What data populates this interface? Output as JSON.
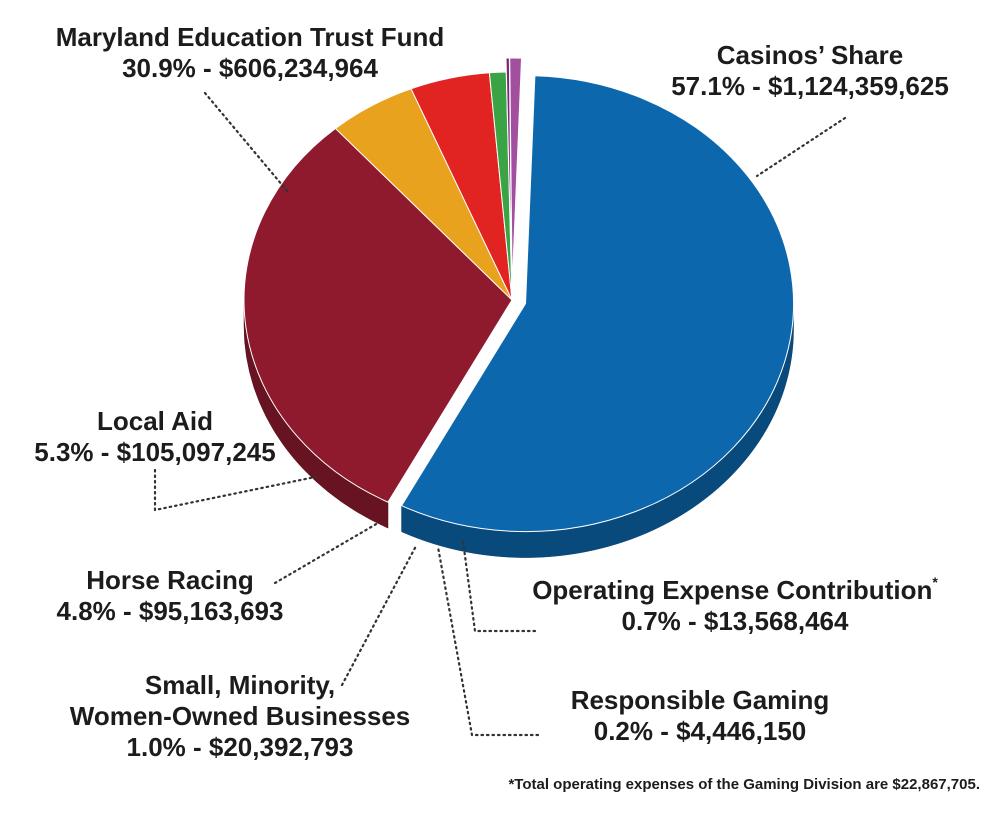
{
  "chart_data": {
    "type": "pie",
    "title": "",
    "slices": [
      {
        "name": "Casinos’ Share",
        "percent": 57.1,
        "amount": "$1,124,359,625",
        "label_pct": "57.1%",
        "color": "#0d67ad",
        "exploded": true
      },
      {
        "name": "Maryland Education Trust Fund",
        "percent": 30.9,
        "amount": "$606,234,964",
        "label_pct": "30.9%",
        "color": "#8f1a2e",
        "exploded": false
      },
      {
        "name": "Local Aid",
        "percent": 5.3,
        "amount": "$105,097,245",
        "label_pct": "5.3%",
        "color": "#e8a21d",
        "exploded": false
      },
      {
        "name": "Horse Racing",
        "percent": 4.8,
        "amount": "$95,163,693",
        "label_pct": "4.8%",
        "color": "#e12321",
        "exploded": false
      },
      {
        "name": "Small, Minority, Women-Owned Businesses",
        "percent": 1.0,
        "amount": "$20,392,793",
        "label_pct": "1.0%",
        "color": "#3aa343",
        "exploded": false
      },
      {
        "name": "Responsible Gaming",
        "percent": 0.2,
        "amount": "$4,446,150",
        "label_pct": "0.2%",
        "color": "#7a2a7a",
        "exploded": true
      },
      {
        "name": "Operating Expense Contribution",
        "percent": 0.7,
        "amount": "$13,568,464",
        "label_pct": "0.7%",
        "color": "#a24fa0",
        "exploded": true
      }
    ],
    "legend": "none",
    "footnote": "*Total operating expenses of the Gaming Division are $22,867,705."
  },
  "labels": {
    "mets_name": "Maryland Education Trust Fund",
    "mets_value": "30.9% - $606,234,964",
    "casino_name": "Casinos’ Share",
    "casino_value": "57.1% - $1,124,359,625",
    "local_name": "Local Aid",
    "local_value": "5.3% - $105,097,245",
    "horse_name": "Horse Racing",
    "horse_value": "4.8% - $95,163,693",
    "small_line1": "Small, Minority,",
    "small_line2": "Women-Owned Businesses",
    "small_value": "1.0% - $20,392,793",
    "oper_name": "Operating Expense Contribution",
    "oper_star": "*",
    "oper_value": "0.7% - $13,568,464",
    "resp_name": "Responsible Gaming",
    "resp_value": "0.2% - $4,446,150"
  }
}
